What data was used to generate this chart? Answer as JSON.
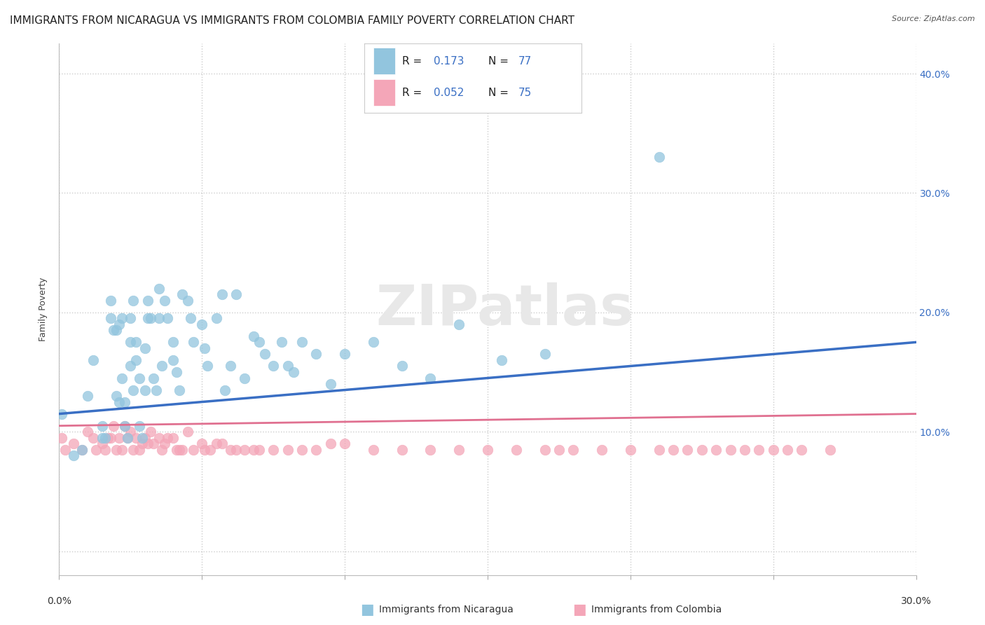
{
  "title": "IMMIGRANTS FROM NICARAGUA VS IMMIGRANTS FROM COLOMBIA FAMILY POVERTY CORRELATION CHART",
  "source": "Source: ZipAtlas.com",
  "ylabel": "Family Poverty",
  "xlim": [
    0.0,
    0.3
  ],
  "ylim": [
    -0.02,
    0.425
  ],
  "legend_nic_R": "0.173",
  "legend_nic_N": "77",
  "legend_col_R": "0.052",
  "legend_col_N": "75",
  "nicaragua_color": "#92c5de",
  "colombia_color": "#f4a6b8",
  "trendline_nicaragua_color": "#3a6fc4",
  "trendline_colombia_color": "#e07090",
  "watermark_text": "ZIPatlas",
  "background_color": "#ffffff",
  "grid_color": "#cccccc",
  "title_fontsize": 11,
  "axis_fontsize": 9,
  "tick_fontsize": 9,
  "right_tick_color": "#3a6fc4",
  "legend_text_color": "#3a6fc4",
  "nicaragua_x": [
    0.001,
    0.005,
    0.008,
    0.01,
    0.012,
    0.015,
    0.015,
    0.016,
    0.018,
    0.018,
    0.019,
    0.02,
    0.02,
    0.021,
    0.021,
    0.022,
    0.022,
    0.023,
    0.023,
    0.024,
    0.025,
    0.025,
    0.025,
    0.026,
    0.026,
    0.027,
    0.027,
    0.028,
    0.028,
    0.029,
    0.03,
    0.03,
    0.031,
    0.031,
    0.032,
    0.033,
    0.034,
    0.035,
    0.035,
    0.036,
    0.037,
    0.038,
    0.04,
    0.04,
    0.041,
    0.042,
    0.043,
    0.045,
    0.046,
    0.047,
    0.05,
    0.051,
    0.052,
    0.055,
    0.057,
    0.058,
    0.06,
    0.062,
    0.065,
    0.068,
    0.07,
    0.072,
    0.075,
    0.078,
    0.08,
    0.082,
    0.085,
    0.09,
    0.095,
    0.1,
    0.11,
    0.12,
    0.13,
    0.14,
    0.155,
    0.17,
    0.21
  ],
  "nicaragua_y": [
    0.115,
    0.08,
    0.085,
    0.13,
    0.16,
    0.095,
    0.105,
    0.095,
    0.21,
    0.195,
    0.185,
    0.185,
    0.13,
    0.19,
    0.125,
    0.195,
    0.145,
    0.125,
    0.105,
    0.095,
    0.175,
    0.155,
    0.195,
    0.21,
    0.135,
    0.175,
    0.16,
    0.145,
    0.105,
    0.095,
    0.135,
    0.17,
    0.21,
    0.195,
    0.195,
    0.145,
    0.135,
    0.22,
    0.195,
    0.155,
    0.21,
    0.195,
    0.175,
    0.16,
    0.15,
    0.135,
    0.215,
    0.21,
    0.195,
    0.175,
    0.19,
    0.17,
    0.155,
    0.195,
    0.215,
    0.135,
    0.155,
    0.215,
    0.145,
    0.18,
    0.175,
    0.165,
    0.155,
    0.175,
    0.155,
    0.15,
    0.175,
    0.165,
    0.14,
    0.165,
    0.175,
    0.155,
    0.145,
    0.19,
    0.16,
    0.165,
    0.33
  ],
  "colombia_x": [
    0.001,
    0.002,
    0.005,
    0.008,
    0.01,
    0.012,
    0.013,
    0.015,
    0.016,
    0.017,
    0.018,
    0.019,
    0.02,
    0.021,
    0.022,
    0.023,
    0.024,
    0.025,
    0.026,
    0.027,
    0.028,
    0.029,
    0.03,
    0.031,
    0.032,
    0.033,
    0.035,
    0.036,
    0.037,
    0.038,
    0.04,
    0.041,
    0.042,
    0.043,
    0.045,
    0.047,
    0.05,
    0.051,
    0.053,
    0.055,
    0.057,
    0.06,
    0.062,
    0.065,
    0.068,
    0.07,
    0.075,
    0.08,
    0.085,
    0.09,
    0.095,
    0.1,
    0.11,
    0.12,
    0.13,
    0.14,
    0.15,
    0.16,
    0.17,
    0.175,
    0.18,
    0.19,
    0.2,
    0.21,
    0.215,
    0.22,
    0.225,
    0.23,
    0.235,
    0.24,
    0.245,
    0.25,
    0.255,
    0.26,
    0.27
  ],
  "colombia_y": [
    0.095,
    0.085,
    0.09,
    0.085,
    0.1,
    0.095,
    0.085,
    0.09,
    0.085,
    0.095,
    0.095,
    0.105,
    0.085,
    0.095,
    0.085,
    0.105,
    0.095,
    0.1,
    0.085,
    0.095,
    0.085,
    0.09,
    0.095,
    0.09,
    0.1,
    0.09,
    0.095,
    0.085,
    0.09,
    0.095,
    0.095,
    0.085,
    0.085,
    0.085,
    0.1,
    0.085,
    0.09,
    0.085,
    0.085,
    0.09,
    0.09,
    0.085,
    0.085,
    0.085,
    0.085,
    0.085,
    0.085,
    0.085,
    0.085,
    0.085,
    0.09,
    0.09,
    0.085,
    0.085,
    0.085,
    0.085,
    0.085,
    0.085,
    0.085,
    0.085,
    0.085,
    0.085,
    0.085,
    0.085,
    0.085,
    0.085,
    0.085,
    0.085,
    0.085,
    0.085,
    0.085,
    0.085,
    0.085,
    0.085,
    0.085
  ]
}
